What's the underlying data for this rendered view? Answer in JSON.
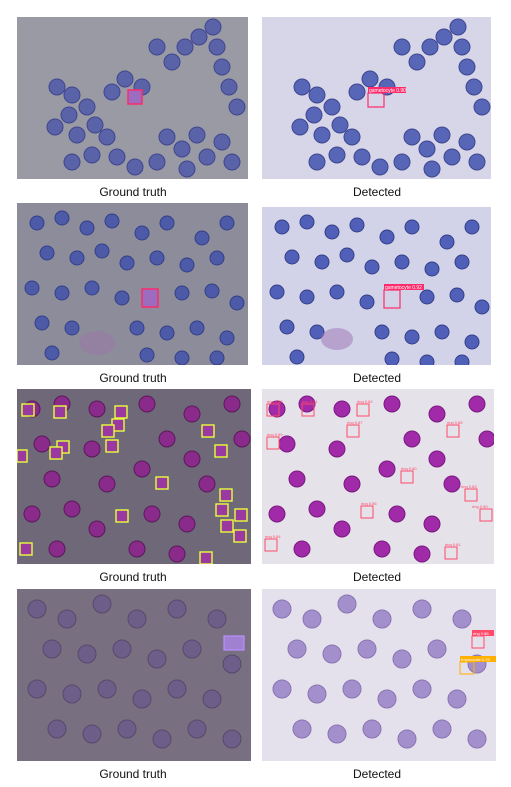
{
  "figure": {
    "rows": [
      {
        "ground_truth_caption": "Ground truth",
        "detected_caption": "Detected",
        "detected_labels": [
          "gametocyte 0.90"
        ]
      },
      {
        "ground_truth_caption": "Ground truth",
        "detected_caption": "Detected",
        "detected_labels": [
          "gametocyte 0.92"
        ]
      },
      {
        "ground_truth_caption": "Ground truth",
        "detected_caption": "Detected",
        "detected_labels": [
          "ring 0.88",
          "ring 0.91",
          "ring 0.82",
          "ring 0.87",
          "ring 0.85",
          "ring 0.89",
          "ring 0.80",
          "ring 0.83",
          "ring 0.86",
          "ring 0.90",
          "ring 0.84",
          "ring 0.81"
        ]
      },
      {
        "ground_truth_caption": "Ground truth",
        "detected_caption": "Detected",
        "detected_labels": [
          "ring 0.85",
          "trophozoite 0.78"
        ]
      }
    ]
  },
  "colors": {
    "bbox_gametocyte": "#ff2a6a",
    "bbox_ring_gt": "#e8ff3a",
    "bbox_ring_det": "#ff4a6a",
    "bbox_trophozoite": "#ffb000"
  }
}
